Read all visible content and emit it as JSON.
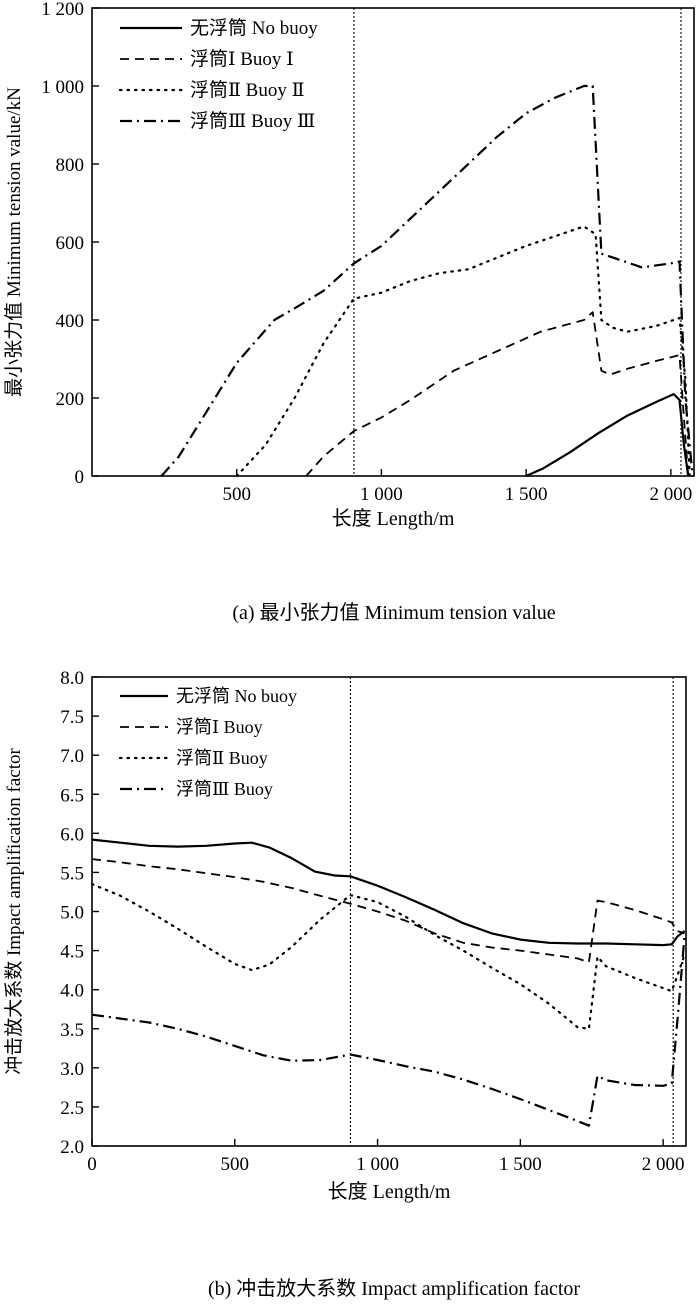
{
  "chart_data": [
    {
      "type": "line",
      "xlabel": "长度 Length/m",
      "ylabel": "最小张力值 Minimum tension value/kN",
      "caption": "(a) 最小张力值 Minimum tension value",
      "xlim": [
        0,
        2080
      ],
      "ylim": [
        0,
        1200
      ],
      "xticks": [
        500,
        1000,
        1500,
        2000
      ],
      "xtick_labels": [
        "500",
        "1 000",
        "1 500",
        "2 000"
      ],
      "yticks": [
        0,
        200,
        400,
        600,
        800,
        1000,
        1200
      ],
      "ytick_labels": [
        "0",
        "200",
        "400",
        "600",
        "800",
        "1 000",
        "1 200"
      ],
      "vlines": [
        905,
        2035
      ],
      "legend_position": "top-left",
      "series": [
        {
          "name": "无浮筒 No buoy",
          "style": "solid",
          "x": [
            1500,
            1560,
            1650,
            1750,
            1850,
            1950,
            2010,
            2030,
            2045,
            2060
          ],
          "y": [
            0,
            20,
            60,
            110,
            155,
            190,
            210,
            195,
            80,
            0
          ]
        },
        {
          "name": "浮筒Ⅰ Buoy Ⅰ",
          "style": "dashed",
          "x": [
            740,
            800,
            905,
            1000,
            1100,
            1250,
            1400,
            1550,
            1700,
            1730,
            1760,
            1790,
            1850,
            1950,
            2030,
            2045,
            2060
          ],
          "y": [
            0,
            50,
            115,
            150,
            195,
            270,
            320,
            370,
            400,
            420,
            270,
            260,
            275,
            295,
            310,
            150,
            0
          ]
        },
        {
          "name": "浮筒Ⅱ Buoy Ⅱ",
          "style": "dotted",
          "x": [
            500,
            600,
            700,
            800,
            905,
            1000,
            1100,
            1200,
            1300,
            1400,
            1500,
            1600,
            1700,
            1740,
            1760,
            1800,
            1850,
            1950,
            2030,
            2050,
            2065
          ],
          "y": [
            0,
            80,
            200,
            340,
            455,
            470,
            500,
            520,
            530,
            560,
            590,
            615,
            640,
            620,
            400,
            380,
            370,
            385,
            405,
            250,
            0
          ]
        },
        {
          "name": "浮筒Ⅲ Buoy Ⅲ",
          "style": "dashdot",
          "x": [
            240,
            300,
            400,
            500,
            630,
            700,
            800,
            905,
            1000,
            1100,
            1200,
            1300,
            1400,
            1500,
            1600,
            1700,
            1730,
            1760,
            1800,
            1900,
            2000,
            2030,
            2050,
            2075
          ],
          "y": [
            0,
            50,
            170,
            290,
            400,
            430,
            475,
            545,
            590,
            660,
            730,
            800,
            870,
            930,
            970,
            1000,
            1000,
            570,
            560,
            535,
            545,
            550,
            200,
            0
          ]
        }
      ]
    },
    {
      "type": "line",
      "xlabel": "长度 Length/m",
      "ylabel": "冲击放大系数 Impact amplification factor",
      "caption": "(b) 冲击放大系数 Impact amplification factor",
      "xlim": [
        0,
        2080
      ],
      "ylim": [
        2.0,
        8.0
      ],
      "xticks": [
        0,
        500,
        1000,
        1500,
        2000
      ],
      "xtick_labels": [
        "0",
        "500",
        "1 000",
        "1 500",
        "2 000"
      ],
      "yticks": [
        2.0,
        2.5,
        3.0,
        3.5,
        4.0,
        4.5,
        5.0,
        5.5,
        6.0,
        6.5,
        7.0,
        7.5,
        8.0
      ],
      "ytick_labels": [
        "2.0",
        "2.5",
        "3.0",
        "3.5",
        "4.0",
        "4.5",
        "5.0",
        "5.5",
        "6.0",
        "6.5",
        "7.0",
        "7.5",
        "8.0"
      ],
      "vlines": [
        905,
        2035
      ],
      "legend_position": "top-left",
      "series": [
        {
          "name": "无浮筒 No buoy",
          "style": "solid",
          "x": [
            0,
            100,
            200,
            300,
            400,
            500,
            560,
            620,
            700,
            780,
            850,
            905,
            1000,
            1100,
            1200,
            1300,
            1400,
            1500,
            1600,
            1700,
            1800,
            1900,
            2000,
            2030,
            2050,
            2075
          ],
          "y": [
            5.92,
            5.88,
            5.84,
            5.83,
            5.84,
            5.87,
            5.88,
            5.82,
            5.68,
            5.51,
            5.46,
            5.45,
            5.33,
            5.18,
            5.02,
            4.85,
            4.72,
            4.64,
            4.6,
            4.59,
            4.59,
            4.58,
            4.57,
            4.58,
            4.68,
            4.75
          ]
        },
        {
          "name": "浮筒Ⅰ Buoy",
          "style": "dashed",
          "x": [
            0,
            100,
            200,
            300,
            400,
            500,
            600,
            700,
            800,
            905,
            1000,
            1100,
            1200,
            1300,
            1400,
            1500,
            1600,
            1700,
            1740,
            1770,
            1800,
            1900,
            2000,
            2030,
            2050,
            2075
          ],
          "y": [
            5.67,
            5.63,
            5.58,
            5.54,
            5.49,
            5.44,
            5.38,
            5.3,
            5.2,
            5.1,
            5.0,
            4.88,
            4.72,
            4.6,
            4.54,
            4.5,
            4.45,
            4.4,
            4.35,
            5.14,
            5.12,
            5.02,
            4.9,
            4.86,
            4.75,
            4.72
          ]
        },
        {
          "name": "浮筒Ⅱ Buoy",
          "style": "dotted",
          "x": [
            0,
            100,
            200,
            300,
            400,
            500,
            560,
            620,
            700,
            800,
            905,
            1000,
            1100,
            1200,
            1300,
            1400,
            1500,
            1600,
            1700,
            1740,
            1770,
            1800,
            1900,
            2000,
            2030,
            2050,
            2075
          ],
          "y": [
            5.35,
            5.2,
            5.0,
            4.78,
            4.55,
            4.33,
            4.25,
            4.32,
            4.55,
            4.9,
            5.21,
            5.12,
            4.93,
            4.7,
            4.5,
            4.28,
            4.07,
            3.82,
            3.52,
            3.5,
            4.42,
            4.3,
            4.15,
            4.02,
            3.98,
            4.18,
            4.45
          ]
        },
        {
          "name": "浮筒Ⅲ Buoy",
          "style": "dashdot",
          "x": [
            0,
            100,
            200,
            300,
            400,
            500,
            600,
            700,
            800,
            905,
            1000,
            1100,
            1200,
            1300,
            1400,
            1500,
            1600,
            1700,
            1740,
            1770,
            1800,
            1900,
            2000,
            2030,
            2050,
            2075
          ],
          "y": [
            3.68,
            3.63,
            3.58,
            3.5,
            3.4,
            3.28,
            3.16,
            3.09,
            3.1,
            3.17,
            3.1,
            3.02,
            2.95,
            2.85,
            2.73,
            2.6,
            2.46,
            2.32,
            2.26,
            2.9,
            2.84,
            2.78,
            2.77,
            2.8,
            3.6,
            4.7
          ]
        }
      ]
    }
  ]
}
